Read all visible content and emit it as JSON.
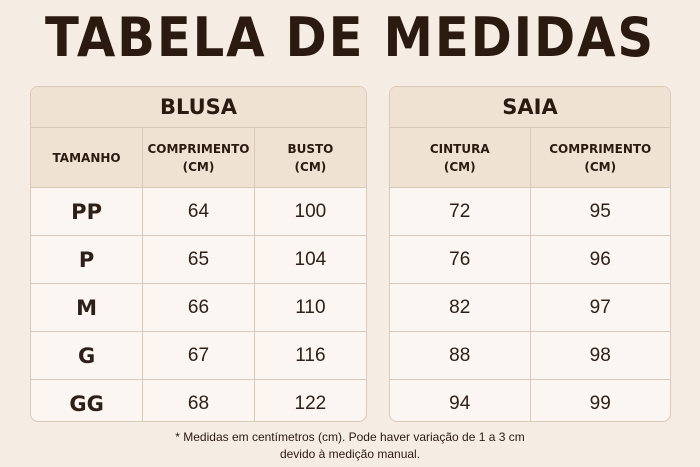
{
  "title": "TABELA DE MEDIDAS",
  "blusa": {
    "caption": "BLUSA",
    "headers": [
      {
        "l1": "TAMANHO",
        "l2": ""
      },
      {
        "l1": "COMPRIMENTO",
        "l2": "(CM)"
      },
      {
        "l1": "BUSTO",
        "l2": "(CM)"
      }
    ],
    "rows": [
      {
        "size": "PP",
        "comprimento": "64",
        "busto": "100"
      },
      {
        "size": "P",
        "comprimento": "65",
        "busto": "104"
      },
      {
        "size": "M",
        "comprimento": "66",
        "busto": "110"
      },
      {
        "size": "G",
        "comprimento": "67",
        "busto": "116"
      },
      {
        "size": "GG",
        "comprimento": "68",
        "busto": "122"
      }
    ]
  },
  "saia": {
    "caption": "SAIA",
    "headers": [
      {
        "l1": "CINTURA",
        "l2": "(CM)"
      },
      {
        "l1": "COMPRIMENTO",
        "l2": "(CM)"
      }
    ],
    "rows": [
      {
        "cintura": "72",
        "comprimento": "95"
      },
      {
        "cintura": "76",
        "comprimento": "96"
      },
      {
        "cintura": "82",
        "comprimento": "97"
      },
      {
        "cintura": "88",
        "comprimento": "98"
      },
      {
        "cintura": "94",
        "comprimento": "99"
      }
    ]
  },
  "note": {
    "line1": "* Medidas em centímetros (cm). Pode haver variação de 1 a 3 cm",
    "line2": "devido à medição manual."
  }
}
